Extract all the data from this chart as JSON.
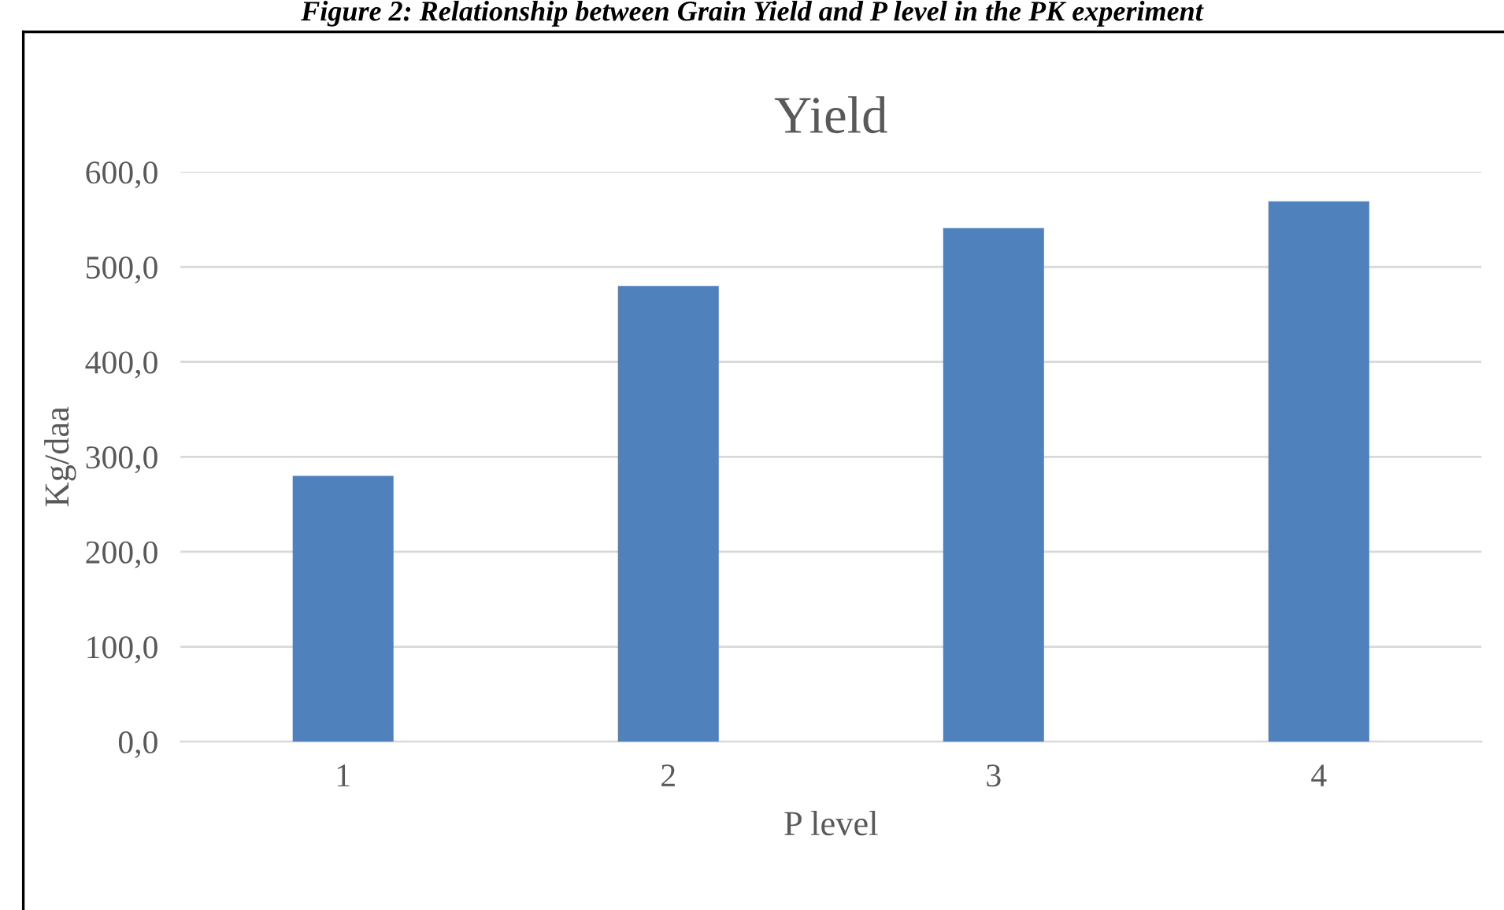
{
  "chart_data": {
    "type": "bar",
    "title": "Yield",
    "xlabel": "P level",
    "ylabel": "Kg/daa",
    "annotations": [
      "Figure 2: Relationship between Grain Yield and P level in the PK experiment"
    ],
    "categories": [
      "1",
      "2",
      "3",
      "4"
    ],
    "series": [
      {
        "color": "#4f81bd",
        "values": [
          280,
          480,
          541,
          569
        ]
      }
    ],
    "ylim": [
      0,
      600
    ],
    "yticks": [
      {
        "value": 0,
        "label": "0,0"
      },
      {
        "value": 100,
        "label": "100,0"
      },
      {
        "value": 200,
        "label": "200,0"
      },
      {
        "value": 300,
        "label": "300,0"
      },
      {
        "value": 400,
        "label": "400,0"
      },
      {
        "value": 500,
        "label": "500,0"
      },
      {
        "value": 600,
        "label": "600,0"
      }
    ],
    "grid": "y",
    "legend": false
  }
}
